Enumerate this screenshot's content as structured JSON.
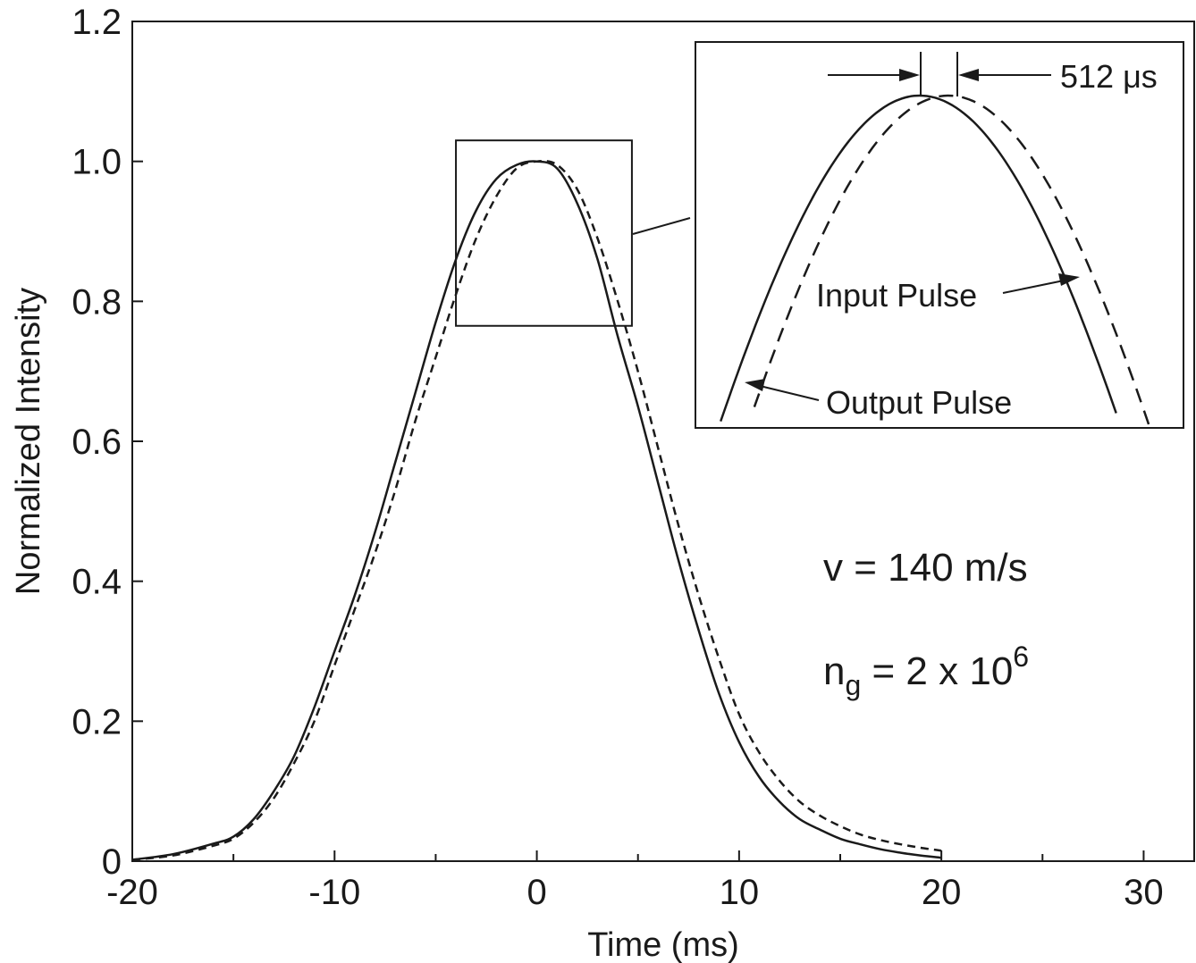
{
  "chart_data": {
    "type": "line",
    "title": "",
    "xlabel": "Time (ms)",
    "ylabel": "Normalized Intensity",
    "xlim": [
      -20,
      32.5
    ],
    "ylim": [
      0,
      1.2
    ],
    "x_ticks": [
      -20,
      -10,
      0,
      10,
      20,
      30
    ],
    "x_tick_labels": [
      "-20",
      "-10",
      "0",
      "10",
      "20",
      "30"
    ],
    "x_minor_ticks": [
      -15,
      -5,
      5,
      15,
      25
    ],
    "y_ticks": [
      0,
      0.2,
      0.4,
      0.6,
      0.8,
      1.0,
      1.2
    ],
    "y_tick_labels": [
      "0",
      "0.2",
      "0.4",
      "0.6",
      "0.8",
      "1.0",
      "1.2"
    ],
    "grid": false,
    "series": [
      {
        "name": "Input Pulse",
        "style": "solid",
        "x": [
          -20,
          -18,
          -16,
          -15,
          -14,
          -13,
          -12,
          -11,
          -10,
          -9,
          -8,
          -7,
          -6,
          -5,
          -4,
          -3,
          -2,
          -1,
          0,
          1,
          2,
          3,
          4,
          5,
          6,
          7,
          8,
          9,
          10,
          11,
          12,
          13,
          14,
          15,
          16,
          17,
          18,
          19,
          20
        ],
        "y": [
          0.002,
          0.01,
          0.025,
          0.035,
          0.06,
          0.1,
          0.15,
          0.22,
          0.3,
          0.38,
          0.47,
          0.57,
          0.67,
          0.77,
          0.86,
          0.93,
          0.975,
          0.995,
          1.0,
          0.99,
          0.94,
          0.86,
          0.75,
          0.65,
          0.54,
          0.43,
          0.33,
          0.24,
          0.17,
          0.12,
          0.085,
          0.06,
          0.045,
          0.032,
          0.024,
          0.017,
          0.012,
          0.008,
          0.005
        ]
      },
      {
        "name": "Output Pulse",
        "style": "dashed",
        "x": [
          -20,
          -18,
          -16,
          -15,
          -14,
          -13,
          -12,
          -11,
          -10,
          -9,
          -8,
          -7,
          -6,
          -5,
          -4,
          -3,
          -2,
          -1,
          0,
          1,
          2,
          3,
          4,
          5,
          6,
          7,
          8,
          9,
          10,
          11,
          12,
          13,
          14,
          15,
          16,
          17,
          18,
          19,
          20
        ],
        "y": [
          0.002,
          0.008,
          0.022,
          0.032,
          0.055,
          0.09,
          0.14,
          0.2,
          0.28,
          0.36,
          0.44,
          0.53,
          0.63,
          0.72,
          0.81,
          0.89,
          0.95,
          0.99,
          1.0,
          0.995,
          0.96,
          0.89,
          0.8,
          0.7,
          0.59,
          0.48,
          0.38,
          0.29,
          0.21,
          0.155,
          0.115,
          0.085,
          0.065,
          0.05,
          0.038,
          0.03,
          0.024,
          0.019,
          0.015
        ]
      }
    ],
    "zoom_box": {
      "xlim": [
        -4.0,
        4.7
      ],
      "ylim": [
        0.765,
        1.03
      ]
    },
    "inset": {
      "delay_label": "512 μs",
      "input_label": "Input Pulse",
      "output_label": "Output Pulse",
      "input_peak_ms": 0.0,
      "delay_ms": 0.512
    },
    "annotations": {
      "velocity": "v = 140 m/s",
      "ng_main": "n",
      "ng_sub": "g",
      "ng_eq": " = 2 x 10",
      "ng_sup": "6"
    }
  }
}
